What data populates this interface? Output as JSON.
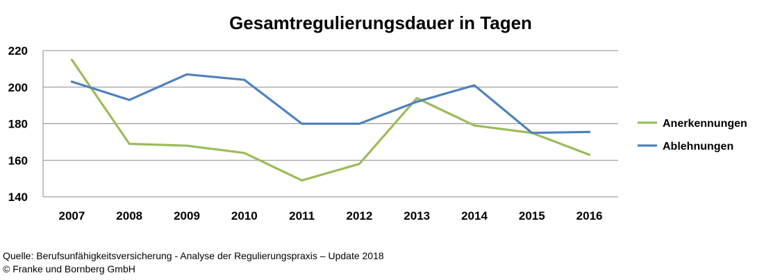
{
  "chart_data": {
    "type": "line",
    "title": "Gesamtregulierungsdauer in Tagen",
    "xlabel": "",
    "ylabel": "",
    "categories": [
      "2007",
      "2008",
      "2009",
      "2010",
      "2011",
      "2012",
      "2013",
      "2014",
      "2015",
      "2016"
    ],
    "ylim": [
      140,
      220
    ],
    "yticks": [
      140,
      160,
      180,
      200,
      220
    ],
    "grid": true,
    "legend_position": "right",
    "series": [
      {
        "name": "Anerkennungen",
        "color": "#9bbb59",
        "values": [
          215,
          169,
          168,
          164,
          149,
          158,
          194,
          179,
          175,
          163
        ]
      },
      {
        "name": "Ablehnungen",
        "color": "#4f81bd",
        "values": [
          203,
          193,
          207,
          204,
          180,
          180,
          192,
          201,
          175,
          175.5
        ]
      }
    ]
  },
  "source": {
    "line1": "Quelle: Berufsunfähigkeitsversicherung - Analyse der Regulierungspraxis – Update 2018",
    "line2": "© Franke und Bornberg GmbH"
  }
}
